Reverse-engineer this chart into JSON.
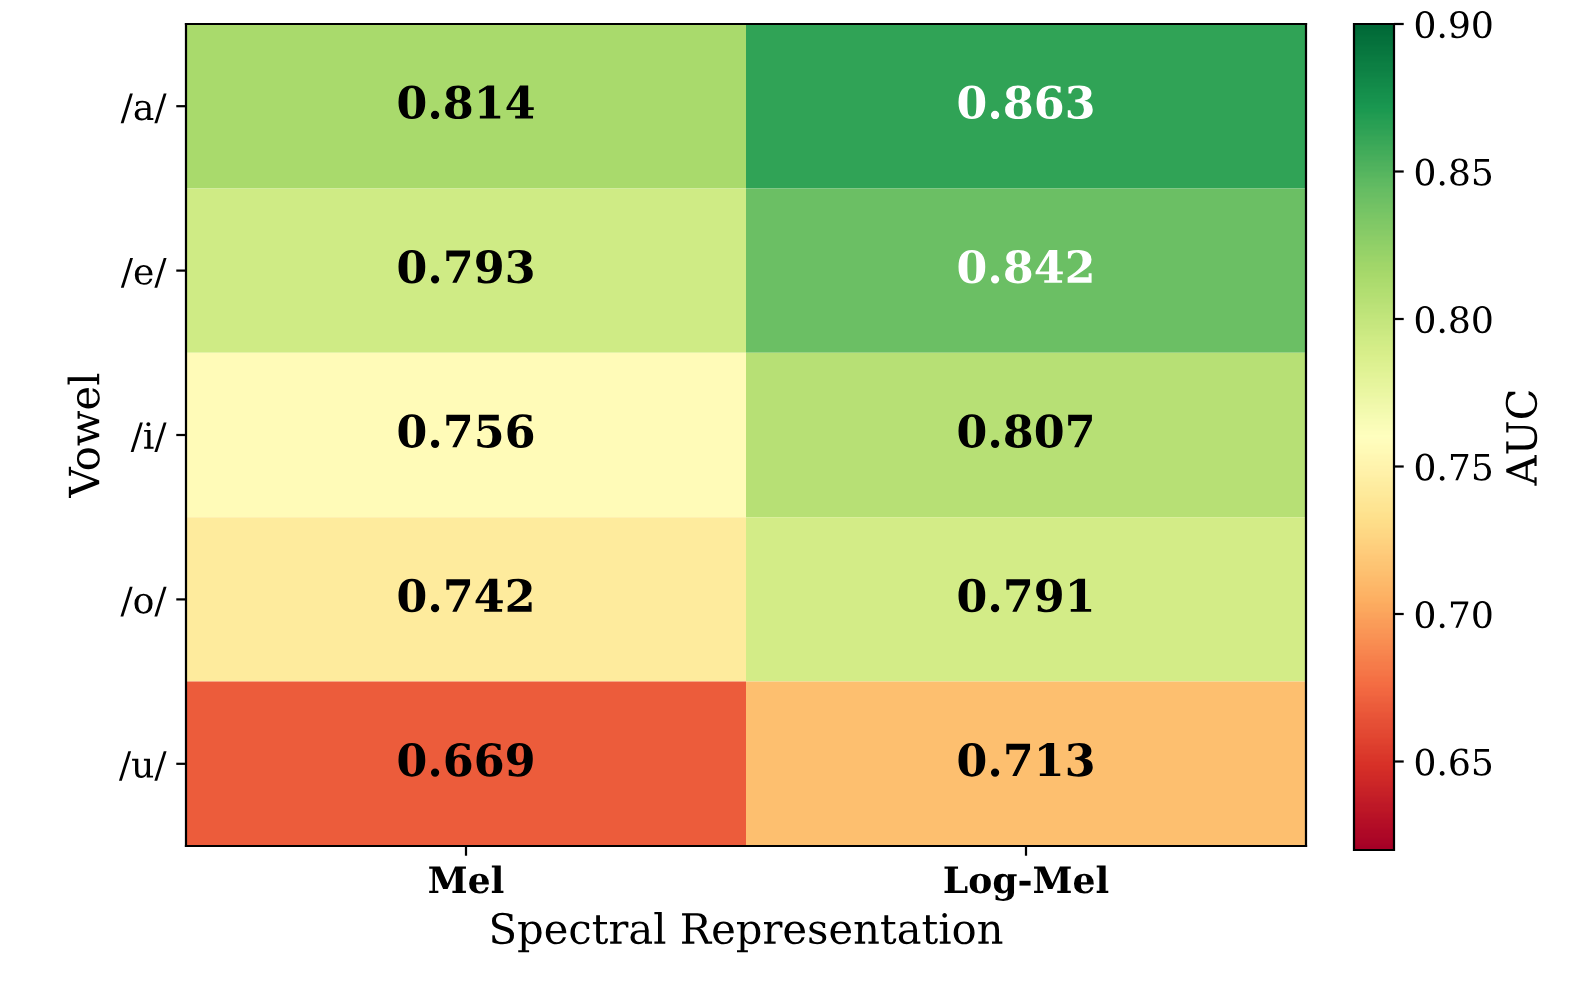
{
  "chart_data": {
    "type": "heatmap",
    "xlabel": "Spectral Representation",
    "ylabel": "Vowel",
    "clabel": "AUC",
    "categories": [
      "Mel",
      "Log-Mel"
    ],
    "y_categories": [
      "/a/",
      "/e/",
      "/i/",
      "/o/",
      "/u/"
    ],
    "cells": [
      [
        0.814,
        0.863
      ],
      [
        0.793,
        0.842
      ],
      [
        0.756,
        0.807
      ],
      [
        0.742,
        0.791
      ],
      [
        0.669,
        0.713
      ]
    ],
    "data_labels": true,
    "clim": [
      0.62,
      0.9
    ],
    "cticks": [
      0.65,
      {
        "value": 0.7,
        "label": "0.70"
      },
      0.75,
      {
        "value": 0.8,
        "label": "0.80"
      },
      0.85,
      {
        "value": 0.9,
        "label": "0.90"
      }
    ]
  }
}
